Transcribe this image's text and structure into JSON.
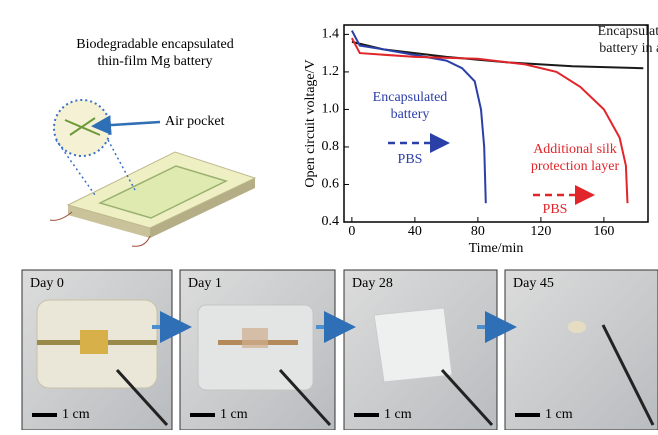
{
  "schematic": {
    "title_lines": [
      "Biodegradable encapsulated",
      "thin-film Mg battery"
    ],
    "callout": "Air pocket"
  },
  "chart_data": {
    "type": "line",
    "y_label": "Open circuit voltage/V",
    "x_label": "Time/min",
    "xlim": [
      -5,
      188
    ],
    "xticks": [
      0,
      40,
      80,
      120,
      160
    ],
    "ylim": [
      0.4,
      1.45
    ],
    "yticks": [
      0.4,
      0.6,
      0.8,
      {
        "value": 1,
        "label": "1.0"
      },
      1.2,
      1.4
    ],
    "series": [
      {
        "name": "Encapsulated battery in air",
        "color": "#1a1a1a",
        "x": [
          0,
          20,
          60,
          100,
          140,
          185
        ],
        "values": [
          1.36,
          1.32,
          1.28,
          1.25,
          1.23,
          1.22
        ]
      },
      {
        "name": "Encapsulated battery",
        "color": "#2b3fa8",
        "x": [
          0,
          5,
          20,
          40,
          60,
          70,
          78,
          82,
          84,
          85
        ],
        "values": [
          1.42,
          1.34,
          1.32,
          1.29,
          1.26,
          1.22,
          1.15,
          1,
          0.8,
          0.5
        ]
      },
      {
        "name": "Additional silk protection layer",
        "color": "#e0262a",
        "x": [
          0,
          5,
          40,
          80,
          110,
          130,
          145,
          160,
          170,
          174,
          175
        ],
        "values": [
          1.38,
          1.3,
          1.28,
          1.27,
          1.24,
          1.2,
          1.12,
          1,
          0.85,
          0.7,
          0.5
        ]
      }
    ],
    "annotations": [
      {
        "lines": [
          "Encapsulated",
          "battery in air"
        ],
        "color": "#1a1a1a"
      },
      {
        "lines": [
          "Encapsulated",
          "battery"
        ],
        "color": "#2b3fa8"
      },
      {
        "lines": [
          "PBS"
        ],
        "color": "#2b3fa8"
      },
      {
        "lines": [
          "Additional silk",
          "protection layer"
        ],
        "color": "#e0262a"
      },
      {
        "lines": [
          "PBS"
        ],
        "color": "#e0262a"
      }
    ]
  },
  "photos": [
    {
      "label": "Day 0",
      "scale": "1 cm"
    },
    {
      "label": "Day 1",
      "scale": "1 cm"
    },
    {
      "label": "Day 28",
      "scale": "1 cm"
    },
    {
      "label": "Day 45",
      "scale": "1 cm"
    }
  ]
}
